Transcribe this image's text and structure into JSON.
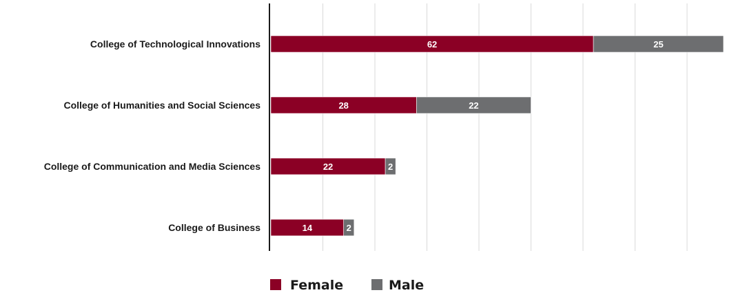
{
  "chart_data": {
    "type": "bar",
    "orientation": "horizontal",
    "stacked": true,
    "categories": [
      "College of Technological Innovations",
      "College of Humanities and Social Sciences",
      "College of Communication and Media Sciences",
      "College of Business"
    ],
    "series": [
      {
        "name": "Female",
        "color": "#8b0025",
        "values": [
          62,
          28,
          22,
          14
        ]
      },
      {
        "name": "Male",
        "color": "#6d6e70",
        "values": [
          25,
          22,
          2,
          2
        ]
      }
    ],
    "xlim": [
      0,
      90
    ],
    "x_gridline_step": 10,
    "grid": true,
    "show_x_tick_labels": false,
    "data_labels": true,
    "legend": {
      "position": "bottom-center"
    }
  }
}
